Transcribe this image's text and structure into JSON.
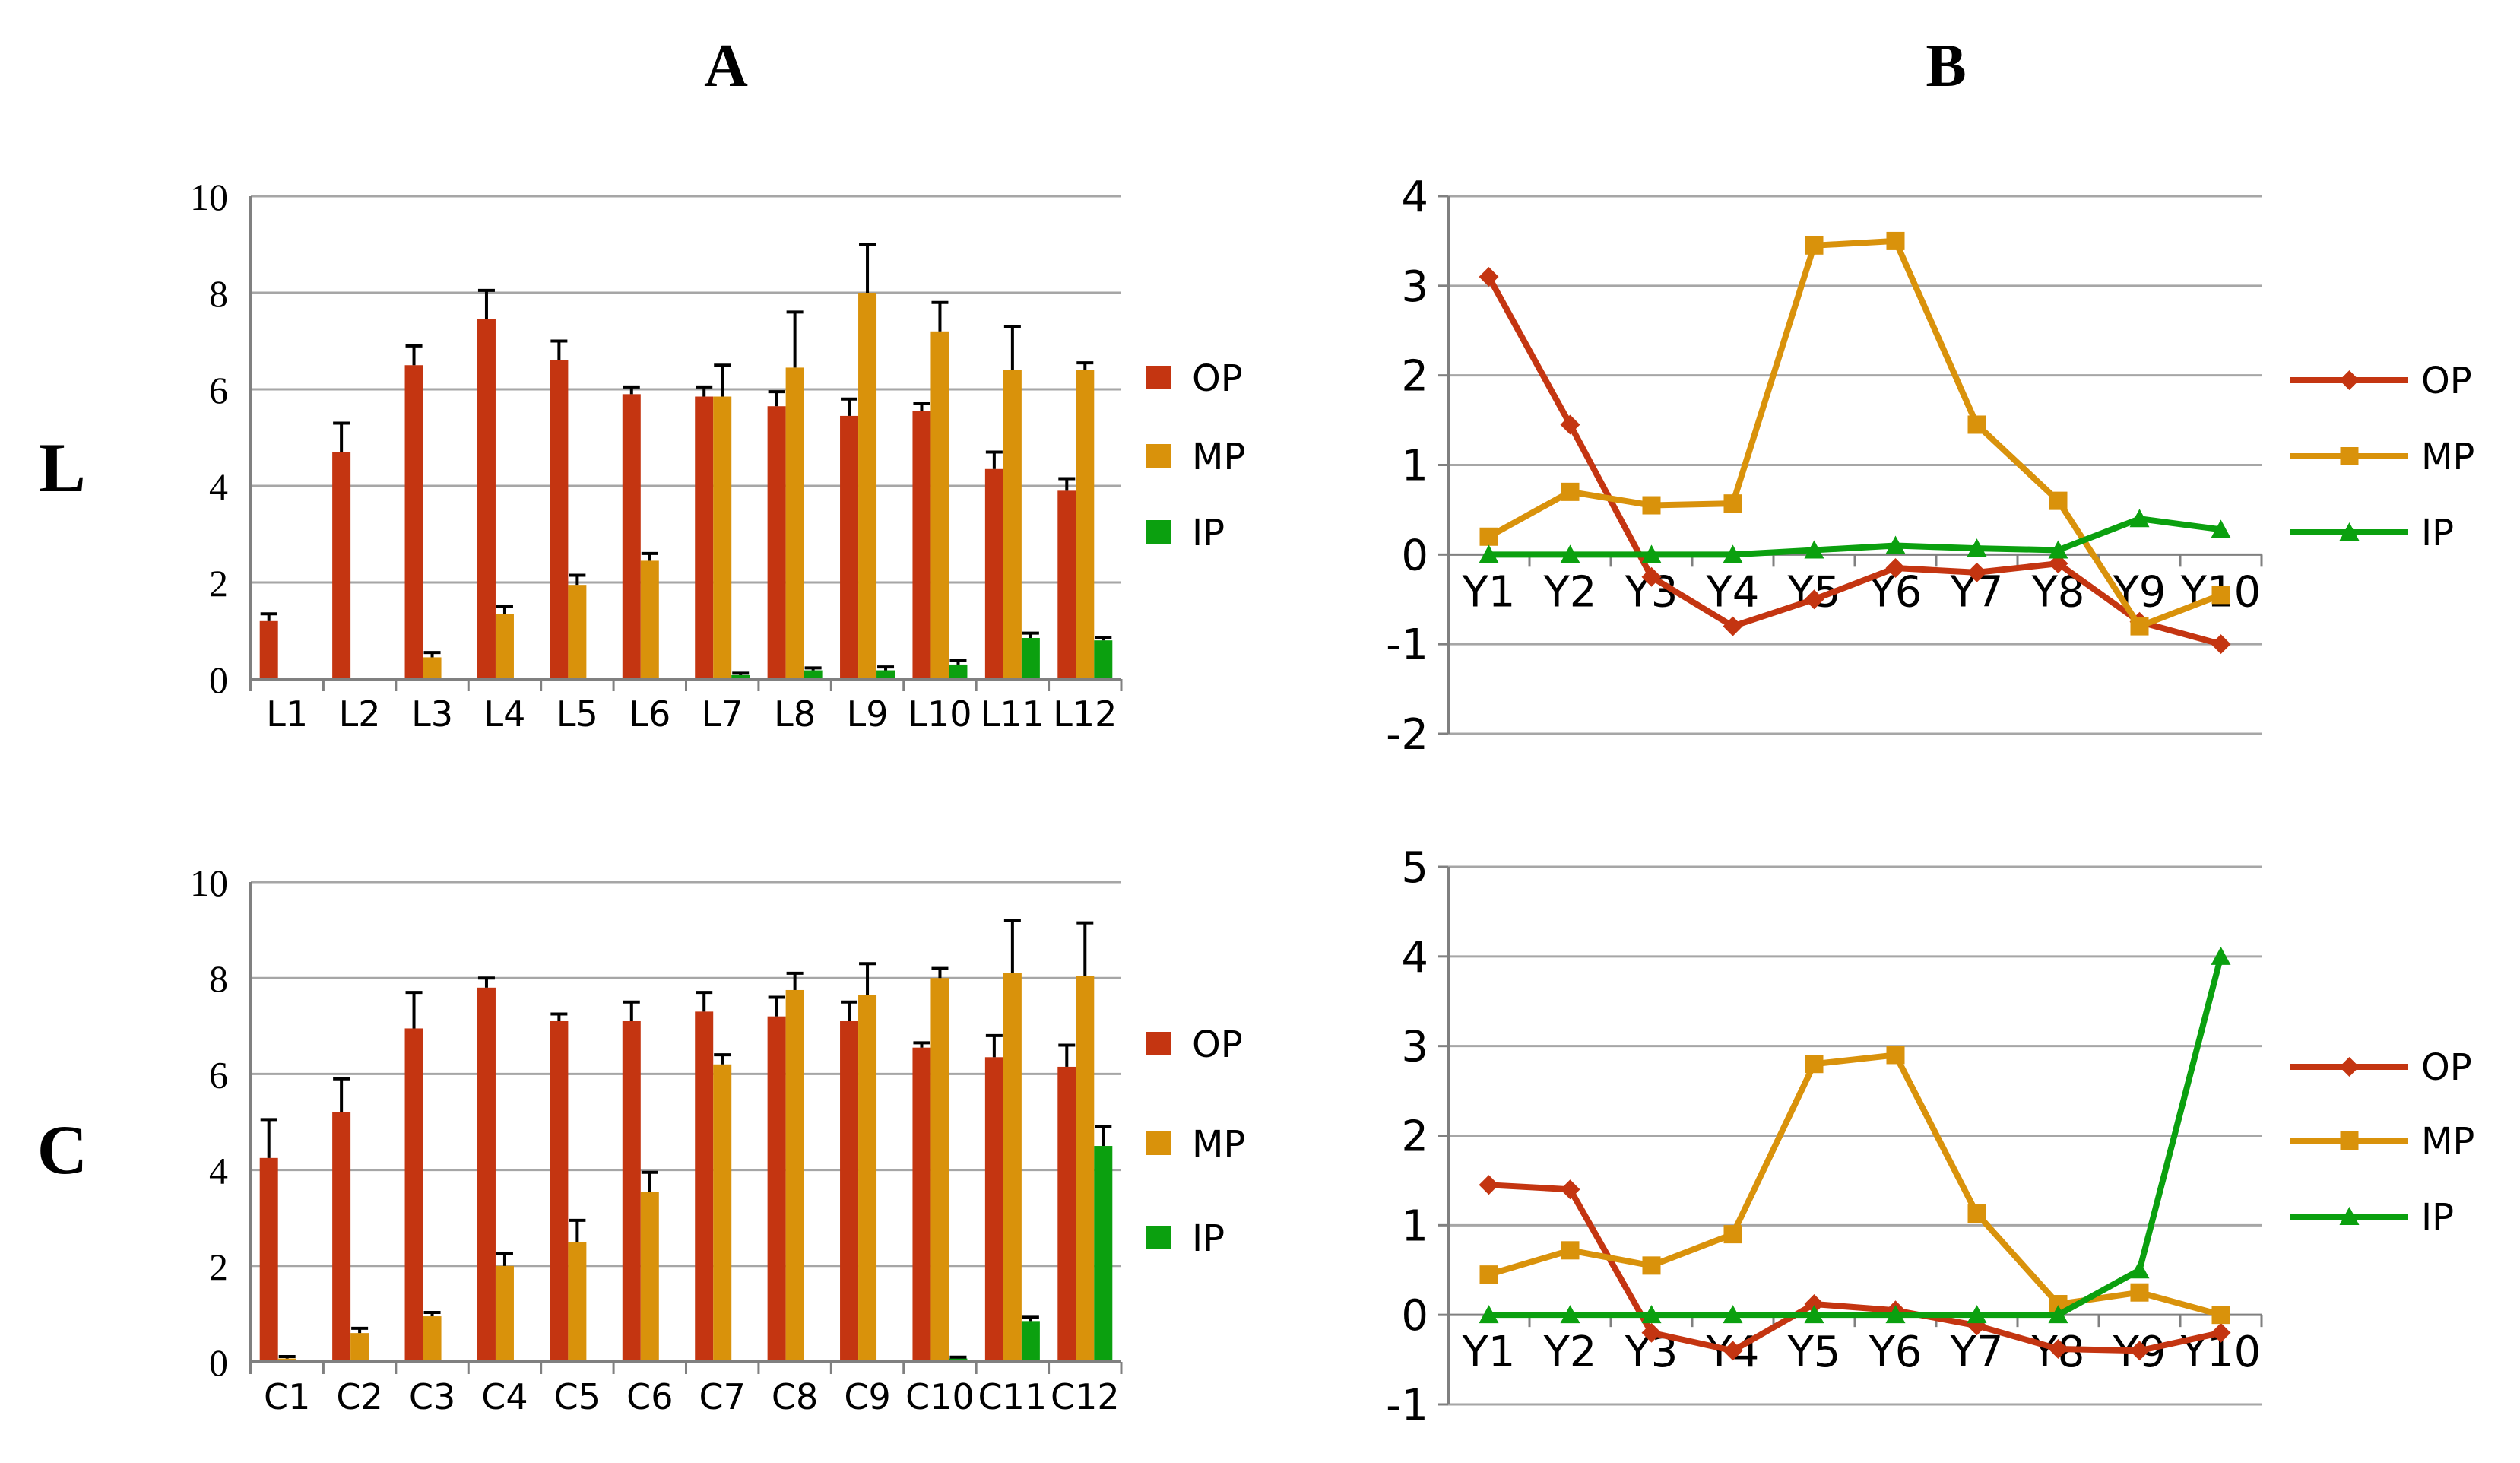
{
  "figure": {
    "panel_titles": {
      "A": "A",
      "B": "B"
    },
    "row_labels": {
      "top": "L",
      "bottom": "C"
    }
  },
  "colors": {
    "op": "#c43511",
    "mp": "#d9920b",
    "ip": "#0ba00f",
    "grid": "#a6a6a6",
    "axis": "#808080",
    "error_bar": "#000000"
  },
  "legend_labels": [
    "OP",
    "MP",
    "IP"
  ],
  "chart_data": [
    {
      "id": "L-A",
      "type": "bar",
      "panel": "A",
      "row": "L",
      "categories": [
        "L1",
        "L2",
        "L3",
        "L4",
        "L5",
        "L6",
        "L7",
        "L8",
        "L9",
        "L10",
        "L11",
        "L12"
      ],
      "series": [
        {
          "name": "OP",
          "color_key": "op",
          "values": [
            1.2,
            4.7,
            6.5,
            7.45,
            6.6,
            5.9,
            5.85,
            5.65,
            5.45,
            5.55,
            4.35,
            3.9
          ],
          "errors": [
            0.15,
            0.6,
            0.4,
            0.6,
            0.4,
            0.15,
            0.2,
            0.3,
            0.35,
            0.15,
            0.35,
            0.25
          ]
        },
        {
          "name": "MP",
          "color_key": "mp",
          "values": [
            0,
            0,
            0.45,
            1.35,
            1.95,
            2.45,
            5.85,
            6.45,
            8.0,
            7.2,
            6.4,
            6.4
          ],
          "errors": [
            0,
            0,
            0.1,
            0.15,
            0.2,
            0.15,
            0.65,
            1.15,
            1.0,
            0.6,
            0.9,
            0.15
          ]
        },
        {
          "name": "IP",
          "color_key": "ip",
          "values": [
            0,
            0,
            0,
            0,
            0,
            0,
            0.08,
            0.18,
            0.18,
            0.3,
            0.85,
            0.8
          ],
          "errors": [
            0,
            0,
            0,
            0,
            0,
            0,
            0.04,
            0.05,
            0.07,
            0.08,
            0.1,
            0.06
          ]
        }
      ],
      "ylim": [
        0,
        10
      ],
      "yticks": [
        0,
        2,
        4,
        6,
        8,
        10
      ],
      "grid": true,
      "legend_position": "right"
    },
    {
      "id": "C-A",
      "type": "bar",
      "panel": "A",
      "row": "C",
      "categories": [
        "C1",
        "C2",
        "C3",
        "C4",
        "C5",
        "C6",
        "C7",
        "C8",
        "C9",
        "C10",
        "C11",
        "C12"
      ],
      "series": [
        {
          "name": "OP",
          "color_key": "op",
          "values": [
            4.25,
            5.2,
            6.95,
            7.8,
            7.1,
            7.1,
            7.3,
            7.2,
            7.1,
            6.55,
            6.35,
            6.15
          ],
          "errors": [
            0.8,
            0.7,
            0.75,
            0.2,
            0.15,
            0.4,
            0.4,
            0.4,
            0.4,
            0.1,
            0.45,
            0.45
          ]
        },
        {
          "name": "MP",
          "color_key": "mp",
          "values": [
            0.07,
            0.6,
            0.95,
            2.0,
            2.5,
            3.55,
            6.2,
            7.75,
            7.65,
            8.0,
            8.1,
            8.05
          ],
          "errors": [
            0.04,
            0.1,
            0.08,
            0.25,
            0.45,
            0.4,
            0.2,
            0.35,
            0.65,
            0.2,
            1.1,
            1.1
          ]
        },
        {
          "name": "IP",
          "color_key": "ip",
          "values": [
            0,
            0,
            0,
            0,
            0,
            0,
            0,
            0,
            0,
            0.07,
            0.85,
            4.5
          ],
          "errors": [
            0,
            0,
            0,
            0,
            0,
            0,
            0,
            0,
            0,
            0.03,
            0.08,
            0.4
          ]
        }
      ],
      "ylim": [
        0,
        10
      ],
      "yticks": [
        0,
        2,
        4,
        6,
        8,
        10
      ],
      "grid": true,
      "legend_position": "right"
    },
    {
      "id": "L-B",
      "type": "line",
      "panel": "B",
      "row": "L",
      "categories": [
        "Y1",
        "Y2",
        "Y3",
        "Y4",
        "Y5",
        "Y6",
        "Y7",
        "Y8",
        "Y9",
        "Y10"
      ],
      "series": [
        {
          "name": "OP",
          "color_key": "op",
          "marker": "diamond",
          "values": [
            3.1,
            1.45,
            -0.25,
            -0.8,
            -0.5,
            -0.15,
            -0.2,
            -0.1,
            -0.75,
            -1.0
          ]
        },
        {
          "name": "MP",
          "color_key": "mp",
          "marker": "square",
          "values": [
            0.2,
            0.7,
            0.55,
            0.57,
            3.45,
            3.5,
            1.45,
            0.6,
            -0.8,
            -0.45
          ]
        },
        {
          "name": "IP",
          "color_key": "ip",
          "marker": "triangle",
          "values": [
            0,
            0,
            0,
            0,
            0.05,
            0.1,
            0.07,
            0.05,
            0.4,
            0.28
          ]
        }
      ],
      "ylim": [
        -2,
        4
      ],
      "yticks": [
        -2,
        -1,
        0,
        1,
        2,
        3,
        4
      ],
      "grid": true,
      "legend_position": "right"
    },
    {
      "id": "C-B",
      "type": "line",
      "panel": "B",
      "row": "C",
      "categories": [
        "Y1",
        "Y2",
        "Y3",
        "Y4",
        "Y5",
        "Y6",
        "Y7",
        "Y8",
        "Y9",
        "Y10"
      ],
      "series": [
        {
          "name": "OP",
          "color_key": "op",
          "marker": "diamond",
          "values": [
            1.45,
            1.4,
            -0.2,
            -0.4,
            0.12,
            0.05,
            -0.12,
            -0.38,
            -0.4,
            -0.2
          ]
        },
        {
          "name": "MP",
          "color_key": "mp",
          "marker": "square",
          "values": [
            0.45,
            0.72,
            0.55,
            0.9,
            2.8,
            2.9,
            1.13,
            0.12,
            0.25,
            0.0
          ]
        },
        {
          "name": "IP",
          "color_key": "ip",
          "marker": "triangle",
          "values": [
            0,
            0,
            0,
            0,
            0,
            0,
            0,
            0,
            0.5,
            4.0
          ]
        }
      ],
      "ylim": [
        -1,
        5
      ],
      "yticks": [
        -1,
        0,
        1,
        2,
        3,
        4,
        5
      ],
      "grid": true,
      "legend_position": "right"
    }
  ]
}
